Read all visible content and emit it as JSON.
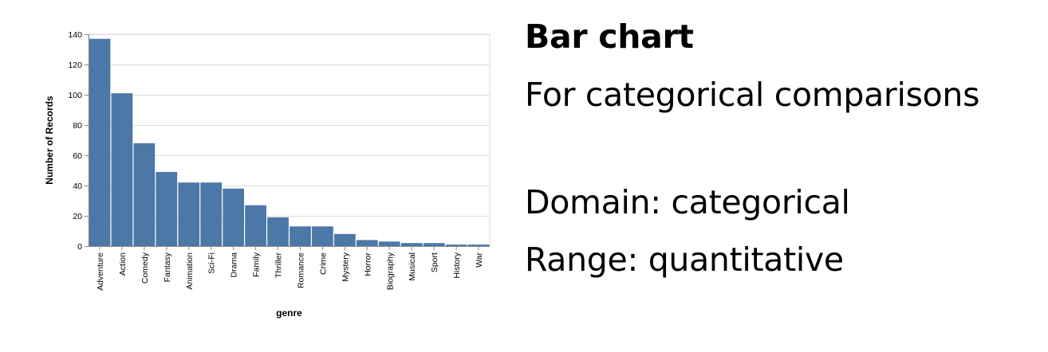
{
  "chart_data": {
    "type": "bar",
    "title": "",
    "xlabel": "genre",
    "ylabel": "Number of Records",
    "ylim": [
      0,
      140
    ],
    "yticks": [
      0,
      20,
      40,
      60,
      80,
      100,
      120,
      140
    ],
    "grid": true,
    "categories": [
      "Adventure",
      "Action",
      "Comedy",
      "Fantasy",
      "Animation",
      "Sci-Fi",
      "Drama",
      "Family",
      "Thriller",
      "Romance",
      "Crime",
      "Mystery",
      "Horror",
      "Biography",
      "Musical",
      "Sport",
      "History",
      "War"
    ],
    "values": [
      137,
      101,
      68,
      49,
      42,
      42,
      38,
      27,
      19,
      13,
      13,
      8,
      4,
      3,
      2,
      2,
      1,
      1
    ],
    "bar_color": "#4c78a8"
  },
  "panel": {
    "heading": "Bar chart",
    "line1": "For categorical comparisons",
    "line2": "Domain: categorical",
    "line3": "Range: quantitative"
  }
}
